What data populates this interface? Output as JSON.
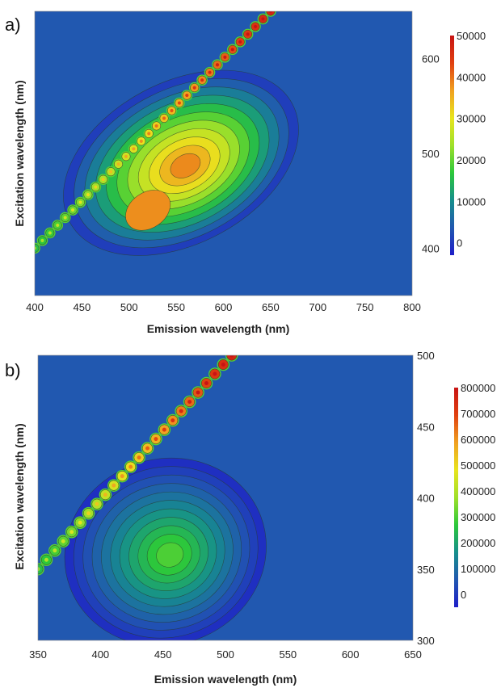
{
  "chart_data": [
    {
      "type": "heatmap",
      "panel_label": "a)",
      "xlabel": "Emission  wavelength (nm)",
      "ylabel": "Excitation wavelength (nm)",
      "xlim": [
        400,
        800
      ],
      "ylim": [
        350,
        650
      ],
      "x_ticks": [
        "400",
        "450",
        "500",
        "550",
        "600",
        "650",
        "700",
        "750",
        "800"
      ],
      "y_ticks": [
        "400",
        "500",
        "600"
      ],
      "colorbar": {
        "min": -3000,
        "max": 50000,
        "ticks": [
          "50000",
          "40000",
          "30000",
          "20000",
          "10000",
          "0"
        ]
      },
      "peaks": [
        {
          "em": 555,
          "ex": 490,
          "intensity": 42000
        },
        {
          "em": 520,
          "ex": 440,
          "intensity": 38000
        }
      ],
      "scatter_line": {
        "em_start": 400,
        "ex_start": 400,
        "em_end": 650,
        "ex_end": 650
      }
    },
    {
      "type": "heatmap",
      "panel_label": "b)",
      "xlabel": "Emission wavelength (nm)",
      "ylabel": "Excitation wavelength (nm)",
      "xlim": [
        350,
        650
      ],
      "ylim": [
        300,
        500
      ],
      "x_ticks": [
        "350",
        "400",
        "450",
        "500",
        "550",
        "600",
        "650"
      ],
      "y_ticks": [
        "300",
        "350",
        "400",
        "450",
        "500"
      ],
      "colorbar": {
        "min": -50000,
        "max": 800000,
        "ticks": [
          "800000",
          "700000",
          "600000",
          "500000",
          "400000",
          "300000",
          "200000",
          "100000",
          "0"
        ]
      },
      "peaks": [
        {
          "em": 452,
          "ex": 362,
          "intensity": 330000
        }
      ],
      "scatter_line": {
        "em_start": 350,
        "ex_start": 350,
        "em_end": 505,
        "ex_end": 500
      }
    }
  ],
  "colors": {
    "background_blue": "#2158b0",
    "scale": [
      "#1e1ec8",
      "#2158b0",
      "#168f8c",
      "#2cc83a",
      "#9fe02a",
      "#e8e41e",
      "#f0a020",
      "#e04010",
      "#c81414"
    ]
  }
}
